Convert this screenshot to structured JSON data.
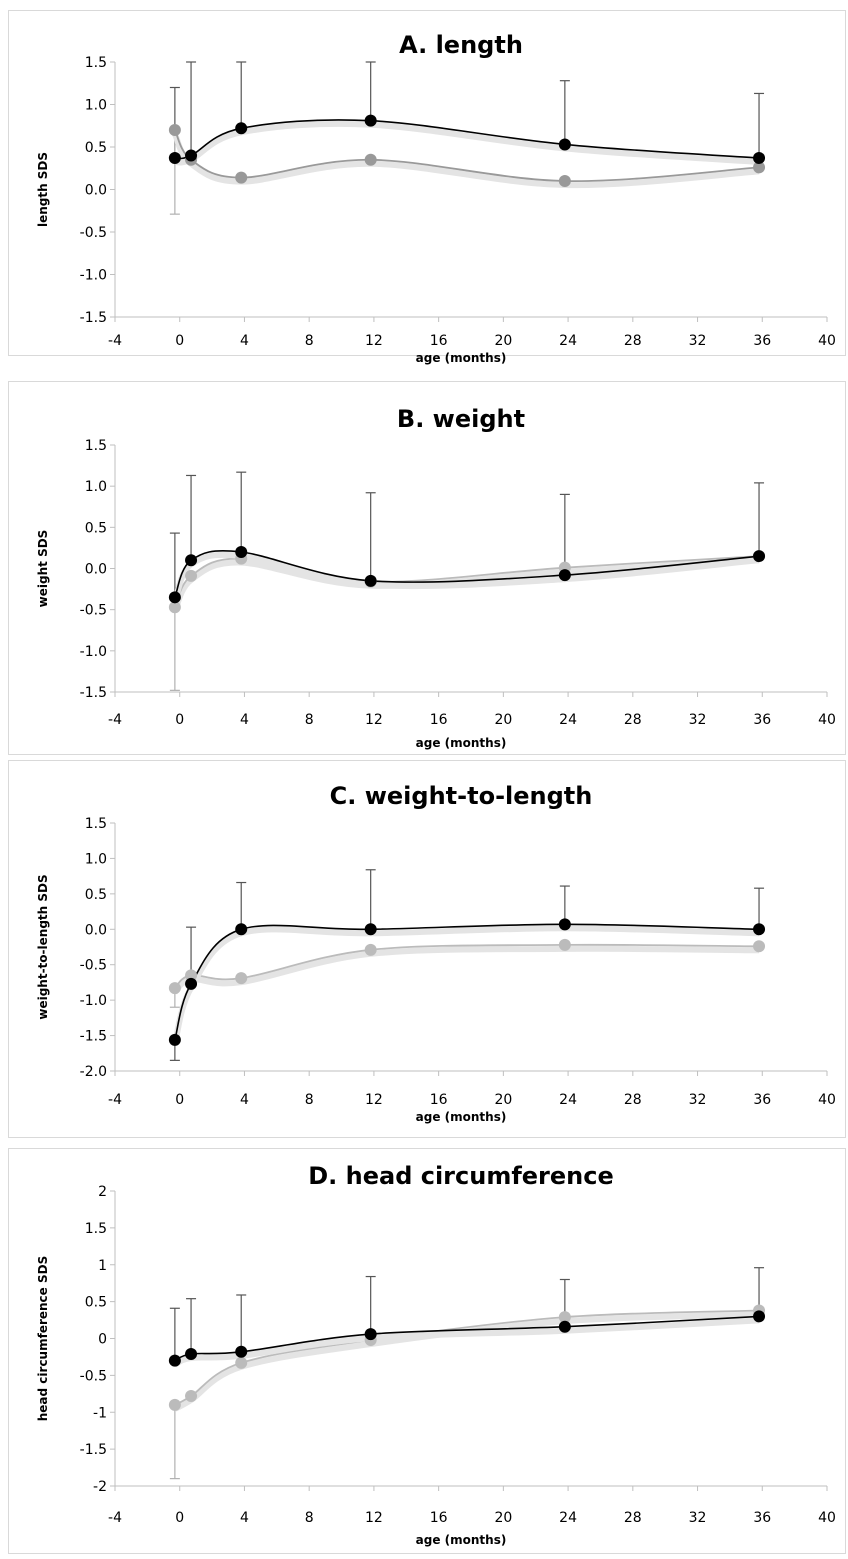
{
  "chart_data": [
    {
      "type": "line",
      "title": "A. length",
      "xlabel": "age (months)",
      "ylabel": "length SDS",
      "xlim": [
        -4,
        40
      ],
      "ylim": [
        -1.5,
        1.5
      ],
      "xticks": [
        "-4",
        "0",
        "4",
        "8",
        "12",
        "16",
        "20",
        "24",
        "28",
        "32",
        "36",
        "40"
      ],
      "yticks": [
        "1.5",
        "1.0",
        "0.5",
        "0.0",
        "-0.5",
        "-1.0",
        "-1.5"
      ],
      "x": [
        -0.3,
        0.7,
        3.8,
        11.8,
        23.8,
        35.8
      ],
      "series": [
        {
          "color": "#000000",
          "values": [
            0.37,
            0.4,
            0.72,
            0.81,
            0.53,
            0.37
          ],
          "error_upper": [
            1.2,
            1.5,
            1.5,
            1.5,
            1.28,
            1.13
          ]
        },
        {
          "color": "#999999",
          "values": [
            0.7,
            0.35,
            0.14,
            0.35,
            0.1,
            0.26
          ],
          "error_lower": [
            -0.29,
            null,
            null,
            null,
            null,
            null
          ]
        }
      ]
    },
    {
      "type": "line",
      "title": "B. weight",
      "xlabel": "age (months)",
      "ylabel": "weight SDS",
      "xlim": [
        -4,
        40
      ],
      "ylim": [
        -1.5,
        1.5
      ],
      "xticks": [
        "-4",
        "0",
        "4",
        "8",
        "12",
        "16",
        "20",
        "24",
        "28",
        "32",
        "36",
        "40"
      ],
      "yticks": [
        "1.5",
        "1.0",
        "0.5",
        "0.0",
        "-0.5",
        "-1.0",
        "-1.5"
      ],
      "x": [
        -0.3,
        0.7,
        3.8,
        11.8,
        23.8,
        35.8
      ],
      "series": [
        {
          "color": "#000000",
          "values": [
            -0.35,
            0.1,
            0.2,
            -0.15,
            -0.08,
            0.15
          ],
          "error_upper": [
            0.43,
            1.13,
            1.17,
            0.92,
            0.9,
            1.04
          ]
        },
        {
          "color": "#bbbbbb",
          "values": [
            -0.47,
            -0.09,
            0.12,
            -0.16,
            0.01,
            0.15
          ],
          "error_lower": [
            -1.48,
            null,
            null,
            null,
            null,
            null
          ]
        }
      ]
    },
    {
      "type": "line",
      "title": "C. weight-to-length",
      "xlabel": "age (months)",
      "ylabel": "weight-to-length SDS",
      "xlim": [
        -4,
        40
      ],
      "ylim": [
        -2.0,
        1.5
      ],
      "xticks": [
        "-4",
        "0",
        "4",
        "8",
        "12",
        "16",
        "20",
        "24",
        "28",
        "32",
        "36",
        "40"
      ],
      "yticks": [
        "1.5",
        "1.0",
        "0.5",
        "0.0",
        "-0.5",
        "-1.0",
        "-1.5",
        "-2.0"
      ],
      "x": [
        -0.3,
        0.7,
        3.8,
        11.8,
        23.8,
        35.8
      ],
      "series": [
        {
          "color": "#000000",
          "values": [
            -1.56,
            -0.77,
            0.0,
            0.0,
            0.07,
            0.0
          ],
          "error_upper": [
            null,
            0.03,
            0.66,
            0.84,
            0.61,
            0.58
          ],
          "error_lower": [
            -1.85,
            null,
            null,
            null,
            null,
            null
          ]
        },
        {
          "color": "#bbbbbb",
          "values": [
            -0.83,
            -0.65,
            -0.69,
            -0.29,
            -0.22,
            -0.24
          ],
          "error_lower": [
            -1.1,
            null,
            null,
            null,
            null,
            null
          ]
        }
      ]
    },
    {
      "type": "line",
      "title": "D. head circumference",
      "xlabel": "age (months)",
      "ylabel": "head circumference SDS",
      "xlim": [
        -4,
        40
      ],
      "ylim": [
        -2,
        2
      ],
      "xticks": [
        "-4",
        "0",
        "4",
        "8",
        "12",
        "16",
        "20",
        "24",
        "28",
        "32",
        "36",
        "40"
      ],
      "yticks": [
        "2",
        "1.5",
        "1",
        "0.5",
        "0",
        "-0.5",
        "-1",
        "-1.5",
        "-2"
      ],
      "x": [
        -0.3,
        0.7,
        3.8,
        11.8,
        23.8,
        35.8
      ],
      "series": [
        {
          "color": "#000000",
          "values": [
            -0.3,
            -0.21,
            -0.18,
            0.06,
            0.16,
            0.3
          ],
          "error_upper": [
            0.41,
            0.54,
            0.59,
            0.84,
            0.8,
            0.96
          ]
        },
        {
          "color": "#bbbbbb",
          "values": [
            -0.9,
            -0.78,
            -0.33,
            -0.02,
            0.29,
            0.38
          ],
          "error_lower": [
            -1.9,
            null,
            null,
            null,
            null,
            null
          ]
        }
      ]
    }
  ]
}
